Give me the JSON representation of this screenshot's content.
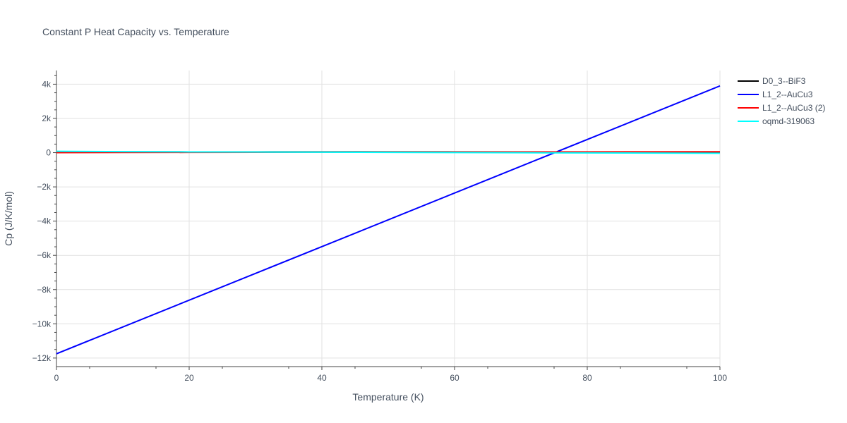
{
  "chart_data": {
    "type": "line",
    "title": "Constant P Heat Capacity vs. Temperature",
    "xlabel": "Temperature (K)",
    "ylabel": "Cp (J/K/mol)",
    "xlim": [
      0,
      100
    ],
    "ylim": [
      -12500,
      4800
    ],
    "x_ticks": [
      0,
      20,
      40,
      60,
      80,
      100
    ],
    "x_tick_labels": [
      "0",
      "20",
      "40",
      "60",
      "80",
      "100"
    ],
    "y_ticks": [
      -12000,
      -10000,
      -8000,
      -6000,
      -4000,
      -2000,
      0,
      2000,
      4000
    ],
    "y_tick_labels": [
      "−12k",
      "−10k",
      "−8k",
      "−6k",
      "−4k",
      "−2k",
      "0",
      "2k",
      "4k"
    ],
    "grid": true,
    "legend_position": "top-right",
    "series": [
      {
        "name": "D0_3--BiF3",
        "color": "#000000",
        "x": [
          0,
          10,
          20,
          30,
          40,
          50,
          60,
          70,
          80,
          90,
          100
        ],
        "y": [
          60,
          50,
          45,
          45,
          45,
          45,
          45,
          45,
          45,
          45,
          45
        ]
      },
      {
        "name": "L1_2--AuCu3",
        "color": "#0000ff",
        "x": [
          0,
          100
        ],
        "y": [
          -11750,
          3900
        ]
      },
      {
        "name": "L1_2--AuCu3 (2)",
        "color": "#ff0000",
        "x": [
          0,
          10,
          20,
          30,
          40,
          50,
          60,
          70,
          80,
          90,
          100
        ],
        "y": [
          0,
          10,
          15,
          20,
          25,
          30,
          35,
          40,
          45,
          50,
          55
        ]
      },
      {
        "name": "oqmd-319063",
        "color": "#00ffff",
        "x": [
          0,
          10,
          20,
          30,
          40,
          50,
          60,
          70,
          80,
          90,
          100
        ],
        "y": [
          80,
          60,
          45,
          35,
          25,
          15,
          5,
          -5,
          -15,
          -25,
          -35
        ]
      }
    ]
  }
}
